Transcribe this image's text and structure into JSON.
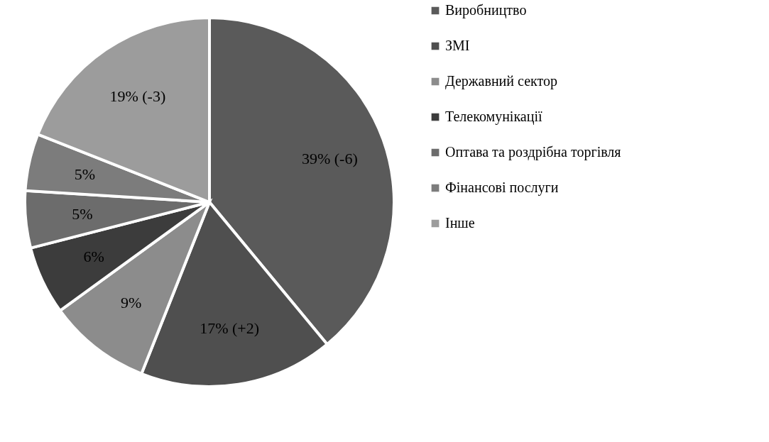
{
  "chart_data": {
    "type": "pie",
    "categories": [
      "Виробництво",
      "ЗМІ",
      "Державний сектор",
      "Телекомунікації",
      "Оптава та роздрібна торгівля",
      "Фінансові послуги",
      "Інше"
    ],
    "values": [
      39,
      17,
      9,
      6,
      5,
      5,
      19
    ],
    "colors": [
      "#5a5a5a",
      "#4f4f4f",
      "#8c8c8c",
      "#3c3c3c",
      "#6c6c6c",
      "#7c7c7c",
      "#9c9c9c"
    ],
    "value_labels": [
      "39% (-6)",
      "17% (+2)",
      "9%",
      "6%",
      "5%",
      "5%",
      "19% (-3)"
    ],
    "legend": "right"
  }
}
